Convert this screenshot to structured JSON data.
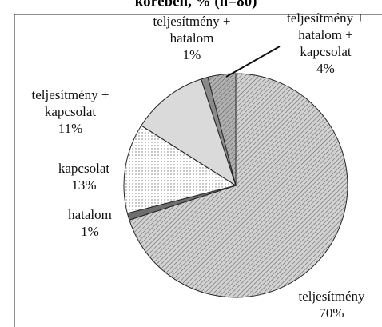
{
  "chart_data": {
    "type": "pie",
    "title": "körében, % (n=80)",
    "categories": [
      "teljesítmény",
      "hatalom",
      "kapcsolat",
      "teljesítmény + kapcsolat",
      "teljesítmény + hatalom",
      "teljesítmény + hatalom + kapcsolat"
    ],
    "values": [
      70,
      1,
      13,
      11,
      1,
      4
    ],
    "value_labels": [
      "70%",
      "1%",
      "13%",
      "11%",
      "1%",
      "4%"
    ],
    "colors": [
      "#d2d2d2",
      "#6e6e6e",
      "#ffffff",
      "#dadada",
      "#8a8a8a",
      "#b0b0b0"
    ],
    "patterns": [
      "diagonal",
      "none",
      "dots",
      "none",
      "none",
      "diagonal"
    ],
    "start_angle": 0,
    "direction": "clockwise"
  }
}
